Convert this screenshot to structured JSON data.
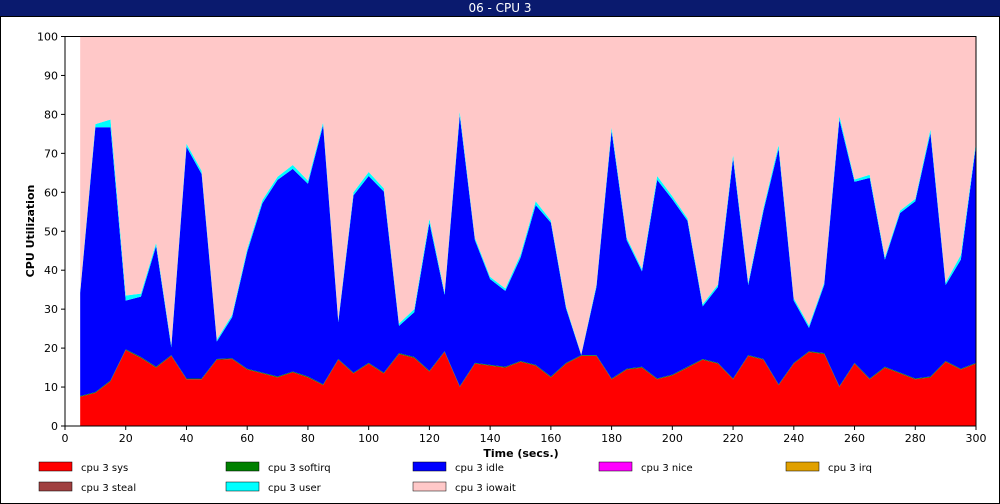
{
  "window": {
    "title": "06 - CPU 3"
  },
  "chart_data": {
    "type": "area",
    "title": "",
    "xlabel": "Time (secs.)",
    "ylabel": "CPU Utilization",
    "xlim": [
      0,
      300
    ],
    "ylim": [
      0,
      100
    ],
    "x_ticks": [
      0,
      20,
      40,
      60,
      80,
      100,
      120,
      140,
      160,
      180,
      200,
      220,
      240,
      260,
      280,
      300
    ],
    "y_ticks": [
      0,
      10,
      20,
      30,
      40,
      50,
      60,
      70,
      80,
      90,
      100
    ],
    "stacked": true,
    "grid": false,
    "legend_position": "bottom",
    "x": [
      5,
      10,
      15,
      20,
      25,
      30,
      35,
      40,
      45,
      50,
      55,
      60,
      65,
      70,
      75,
      80,
      85,
      90,
      95,
      100,
      105,
      110,
      115,
      120,
      125,
      130,
      135,
      140,
      145,
      150,
      155,
      160,
      165,
      170,
      175,
      180,
      185,
      190,
      195,
      200,
      205,
      210,
      215,
      220,
      225,
      230,
      235,
      240,
      245,
      250,
      255,
      260,
      265,
      270,
      275,
      280,
      285,
      290,
      295,
      300
    ],
    "series": [
      {
        "name": "cpu 3 sys",
        "color": "#ff0000",
        "values": [
          7.5,
          8.5,
          11.5,
          19.5,
          17.5,
          15,
          18,
          12,
          12,
          17,
          17.2,
          14.5,
          13.5,
          12.5,
          13.8,
          12.5,
          10.5,
          17,
          13.5,
          16,
          13.5,
          18.5,
          17.5,
          14,
          19,
          10,
          16,
          15.5,
          15,
          16.5,
          15.5,
          12.5,
          16,
          18,
          18,
          12,
          14.5,
          15,
          12,
          13,
          15,
          17,
          16,
          12,
          18,
          17,
          10.5,
          16,
          19,
          18.5,
          10,
          16,
          12,
          15,
          13.5,
          12,
          12.5,
          16.5,
          14.5,
          16
        ]
      },
      {
        "name": "cpu 3 softirq",
        "color": "#008000",
        "values": [
          0.2,
          0.2,
          0.2,
          0.2,
          0.2,
          0.2,
          0.2,
          0.2,
          0.2,
          0.2,
          0.2,
          0.2,
          0.2,
          0.2,
          0.2,
          0.2,
          0.2,
          0.2,
          0.2,
          0.2,
          0.2,
          0.2,
          0.2,
          0.2,
          0.2,
          0.2,
          0.2,
          0.2,
          0.2,
          0.2,
          0.2,
          0.2,
          0.2,
          0.2,
          0.2,
          0.2,
          0.2,
          0.2,
          0.2,
          0.2,
          0.2,
          0.2,
          0.2,
          0.2,
          0.2,
          0.2,
          0.2,
          0.2,
          0.2,
          0.2,
          0.2,
          0.2,
          0.2,
          0.2,
          0.2,
          0.2,
          0.2,
          0.2,
          0.2,
          0.2
        ]
      },
      {
        "name": "cpu 3 idle",
        "color": "#0000ff",
        "values": [
          26.5,
          68,
          65,
          12.5,
          15.5,
          31,
          2,
          59.5,
          52.5,
          4.5,
          10.5,
          30,
          43.5,
          50.5,
          52,
          49.5,
          66.5,
          9.5,
          45.5,
          48,
          46.5,
          7,
          11.5,
          38,
          14.5,
          69.5,
          31.5,
          22,
          19.5,
          26.5,
          41,
          39.5,
          14,
          0,
          17.5,
          63.5,
          33,
          24.5,
          51,
          45,
          37.5,
          13.5,
          19.5,
          56.5,
          18,
          38,
          60.5,
          16,
          6,
          17.5,
          68.5,
          46.5,
          51.5,
          27.5,
          41,
          45.5,
          62.5,
          19.5,
          28,
          56
        ]
      },
      {
        "name": "cpu 3 nice",
        "color": "#ff00ff",
        "values": [
          0,
          0,
          0,
          0,
          0,
          0,
          0,
          0,
          0,
          0,
          0,
          0,
          0,
          0,
          0,
          0,
          0,
          0,
          0,
          0,
          0,
          0,
          0,
          0,
          0,
          0,
          0,
          0,
          0,
          0,
          0,
          0,
          0,
          0,
          0,
          0,
          0,
          0,
          0,
          0,
          0,
          0,
          0,
          0,
          0,
          0,
          0,
          0,
          0,
          0,
          0,
          0,
          0,
          0,
          0,
          0,
          0,
          0,
          0,
          0
        ]
      },
      {
        "name": "cpu 3 irq",
        "color": "#e0a000",
        "values": [
          0,
          0,
          0,
          0,
          0,
          0,
          0,
          0,
          0,
          0,
          0,
          0,
          0,
          0,
          0,
          0,
          0,
          0,
          0,
          0,
          0,
          0,
          0,
          0,
          0,
          0,
          0,
          0,
          0,
          0,
          0,
          0,
          0,
          0,
          0,
          0,
          0,
          0,
          0,
          0,
          0,
          0,
          0,
          0,
          0,
          0,
          0,
          0,
          0,
          0,
          0,
          0,
          0,
          0,
          0,
          0,
          0,
          0,
          0,
          0
        ]
      },
      {
        "name": "cpu 3 steal",
        "color": "#a04040",
        "values": [
          0,
          0,
          0,
          0,
          0,
          0,
          0,
          0,
          0,
          0,
          0,
          0,
          0,
          0,
          0,
          0,
          0,
          0,
          0,
          0,
          0,
          0,
          0,
          0,
          0,
          0,
          0,
          0,
          0,
          0,
          0,
          0,
          0,
          0,
          0,
          0,
          0,
          0,
          0,
          0,
          0,
          0,
          0,
          0,
          0,
          0,
          0,
          0,
          0,
          0,
          0,
          0,
          0,
          0,
          0,
          0,
          0,
          0,
          0,
          0
        ]
      },
      {
        "name": "cpu 3 user",
        "color": "#00ffff",
        "values": [
          0.5,
          0.8,
          2,
          1.3,
          0.8,
          0.8,
          0.6,
          0.8,
          0.8,
          0.5,
          0.6,
          0.8,
          0.8,
          0.8,
          1,
          0.8,
          0.8,
          0.5,
          0.8,
          1,
          0.8,
          0.6,
          0.8,
          1,
          0.6,
          1,
          0.6,
          0.6,
          0.6,
          0.8,
          1,
          0.6,
          0.5,
          0.2,
          0.6,
          1,
          0.6,
          0.6,
          1,
          0.8,
          0.6,
          0.6,
          0.6,
          1,
          0.6,
          0.8,
          1,
          0.6,
          0.6,
          0.6,
          1,
          0.6,
          0.8,
          0.6,
          0.6,
          0.6,
          1,
          0.6,
          1.2,
          0.8
        ]
      },
      {
        "name": "cpu 3 iowait",
        "color": "#ffc8c8",
        "values": [
          65.3,
          22.5,
          21.3,
          66.5,
          66,
          53,
          79.2,
          27.5,
          34.5,
          77.8,
          71.5,
          54.5,
          42,
          36,
          33,
          37,
          22,
          72.8,
          40,
          34.8,
          39,
          73.7,
          70,
          46.8,
          65.7,
          19.3,
          51.7,
          61.7,
          64.7,
          56,
          42.3,
          47.2,
          69.3,
          81.6,
          63.7,
          23.3,
          51.7,
          59.7,
          35.8,
          41,
          46.7,
          68.7,
          63.7,
          30.3,
          63.2,
          44,
          27.8,
          67.2,
          74.2,
          63.2,
          20.3,
          36.7,
          35.5,
          56.7,
          44.7,
          41.7,
          23.8,
          63.2,
          56.1,
          27
        ]
      }
    ]
  }
}
